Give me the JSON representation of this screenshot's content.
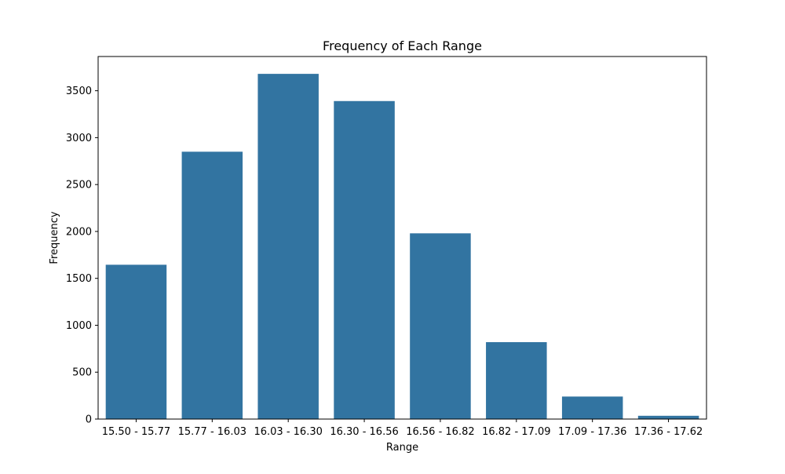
{
  "chart_data": {
    "type": "bar",
    "title": "Frequency of Each Range",
    "xlabel": "Range",
    "ylabel": "Frequency",
    "categories": [
      "15.50 - 15.77",
      "15.77 - 16.03",
      "16.03 - 16.30",
      "16.30 - 16.56",
      "16.56 - 16.82",
      "16.82 - 17.09",
      "17.09 - 17.36",
      "17.36 - 17.62"
    ],
    "values": [
      1645,
      2850,
      3680,
      3390,
      1980,
      820,
      240,
      35
    ],
    "ylim": [
      0,
      3865
    ],
    "yticks": [
      0,
      500,
      1000,
      1500,
      2000,
      2500,
      3000,
      3500
    ],
    "grid": false,
    "legend": "none",
    "bar_color": "#3274a1"
  }
}
